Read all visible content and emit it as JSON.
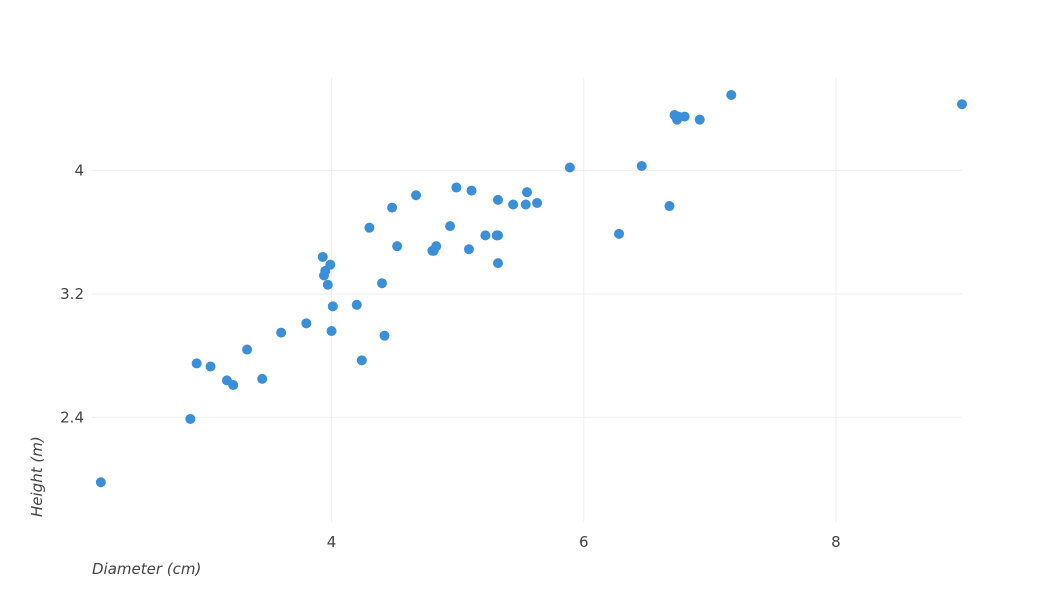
{
  "chart_data": {
    "type": "scatter",
    "title": "",
    "xlabel": "Diameter (cm)",
    "ylabel": "Height (m)",
    "xlim": [
      2.1,
      9.0
    ],
    "ylim": [
      1.8,
      4.6
    ],
    "x_ticks": [
      4,
      6,
      8
    ],
    "x_tick_labels": [
      "4",
      "6",
      "8"
    ],
    "y_ticks": [
      2.4,
      3.2,
      4.0
    ],
    "y_tick_labels": [
      "2.4",
      "3.2",
      "4"
    ],
    "grid": true,
    "legend": "none",
    "marker_color": "#3b8fd9",
    "series": [
      {
        "x": [
          2.17,
          2.88,
          2.93,
          3.04,
          3.17,
          3.22,
          3.33,
          3.45,
          3.6,
          3.8,
          3.93,
          3.94,
          3.95,
          3.97,
          3.99,
          4.0,
          4.01,
          4.2,
          4.24,
          4.3,
          4.4,
          4.42,
          4.48,
          4.52,
          4.67,
          4.8,
          4.81,
          4.83,
          4.94,
          4.99,
          5.09,
          5.11,
          5.22,
          5.31,
          5.32,
          5.32,
          5.32,
          5.44,
          5.54,
          5.55,
          5.63,
          5.89,
          6.28,
          6.46,
          6.68,
          6.72,
          6.74,
          6.75,
          6.8,
          6.92,
          7.17,
          9.0
        ],
        "y": [
          1.98,
          2.39,
          2.75,
          2.73,
          2.64,
          2.61,
          2.84,
          2.65,
          2.95,
          3.01,
          3.44,
          3.32,
          3.35,
          3.26,
          3.39,
          2.96,
          3.12,
          3.13,
          2.77,
          3.63,
          3.27,
          2.93,
          3.76,
          3.51,
          3.84,
          3.48,
          3.48,
          3.51,
          3.64,
          3.89,
          3.49,
          3.87,
          3.58,
          3.58,
          3.4,
          3.81,
          3.58,
          3.78,
          3.78,
          3.86,
          3.79,
          4.02,
          3.59,
          4.03,
          3.77,
          4.36,
          4.33,
          4.35,
          4.35,
          4.33,
          4.49,
          4.43
        ]
      }
    ]
  }
}
